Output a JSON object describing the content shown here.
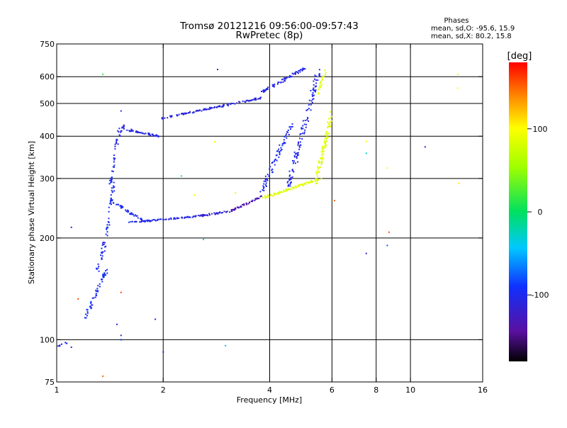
{
  "chart_data": {
    "type": "scatter",
    "title": "Tromsø 20121216 09:56:00-09:57:43",
    "subtitle": "RwPretec (8p)",
    "xlabel": "Frequency [MHz]",
    "ylabel": "Stationary phase Virtual Height [km]",
    "x_scale": "log",
    "y_scale": "log",
    "xlim": [
      1,
      16
    ],
    "ylim": [
      75,
      750
    ],
    "x_ticks": [
      1,
      2,
      4,
      6,
      8,
      10,
      16
    ],
    "x_tick_labels": [
      "1",
      "2",
      "4",
      "6",
      "8",
      "10",
      "16"
    ],
    "y_ticks": [
      75,
      100,
      200,
      300,
      400,
      500,
      600,
      750
    ],
    "y_tick_labels": [
      "75",
      "100",
      "200",
      "300",
      "400",
      "500",
      "600",
      "750"
    ],
    "x_grid_lines": [
      2,
      4,
      6,
      8,
      10
    ],
    "y_grid_lines": [
      100,
      200,
      300,
      400,
      500,
      600
    ],
    "stats": {
      "header": "Phases",
      "line_o": "mean, sd,O: -95.6, 15.9",
      "line_x": "mean, sd,X:  80.2, 15.8"
    },
    "colorbar": {
      "label": "[deg]",
      "range": [
        -180,
        180
      ],
      "ticks": [
        100,
        0,
        -100
      ],
      "tick_labels": [
        "100",
        "0",
        "-100"
      ]
    },
    "traces": [
      {
        "x_range": [
          1.0,
          1.07
        ],
        "y_range": [
          95,
          98
        ],
        "phase": -100,
        "n": 8,
        "spread": 0.012
      },
      {
        "x_range": [
          1.2,
          1.38
        ],
        "y_range": [
          115,
          160
        ],
        "phase": -95,
        "n": 50,
        "spread": 0.03
      },
      {
        "x_range": [
          1.3,
          1.38
        ],
        "y_range": [
          160,
          200
        ],
        "phase": -100,
        "n": 25,
        "spread": 0.04
      },
      {
        "x_range": [
          1.38,
          1.45
        ],
        "y_range": [
          200,
          290
        ],
        "phase": -95,
        "n": 30,
        "spread": 0.03
      },
      {
        "x_range": [
          1.42,
          1.5
        ],
        "y_range": [
          290,
          420
        ],
        "phase": -100,
        "n": 25,
        "spread": 0.03
      },
      {
        "x_range": [
          1.45,
          1.55
        ],
        "y_range": [
          370,
          430
        ],
        "phase": -110,
        "n": 20,
        "spread": 0.02
      },
      {
        "x_range": [
          1.55,
          1.95
        ],
        "y_range": [
          420,
          400
        ],
        "phase": -105,
        "n": 45,
        "spread": 0.015
      },
      {
        "x_range": [
          1.95,
          3.8
        ],
        "y_range": [
          450,
          520
        ],
        "phase": -110,
        "n": 110,
        "spread": 0.012
      },
      {
        "x_range": [
          3.8,
          5.1
        ],
        "y_range": [
          540,
          640
        ],
        "phase": -105,
        "n": 70,
        "spread": 0.02
      },
      {
        "x_range": [
          1.42,
          1.75
        ],
        "y_range": [
          260,
          225
        ],
        "phase": -100,
        "n": 45,
        "spread": 0.02
      },
      {
        "x_range": [
          1.6,
          2.5
        ],
        "y_range": [
          222,
          232
        ],
        "phase": -105,
        "n": 70,
        "spread": 0.01
      },
      {
        "x_range": [
          2.5,
          3.1
        ],
        "y_range": [
          232,
          240
        ],
        "phase": -115,
        "n": 40,
        "spread": 0.012
      },
      {
        "x_range": [
          3.1,
          3.8
        ],
        "y_range": [
          240,
          265
        ],
        "phase": -135,
        "n": 45,
        "spread": 0.012
      },
      {
        "x_range": [
          3.8,
          5.6
        ],
        "y_range": [
          262,
          300
        ],
        "phase": 85,
        "n": 90,
        "spread": 0.015
      },
      {
        "x_range": [
          3.8,
          4.6
        ],
        "y_range": [
          275,
          430
        ],
        "phase": -100,
        "n": 70,
        "spread": 0.04
      },
      {
        "x_range": [
          4.5,
          5.5
        ],
        "y_range": [
          280,
          620
        ],
        "phase": -105,
        "n": 110,
        "spread": 0.05
      },
      {
        "x_range": [
          5.4,
          6.0
        ],
        "y_range": [
          290,
          470
        ],
        "phase": 85,
        "n": 90,
        "spread": 0.04
      },
      {
        "x_range": [
          5.5,
          5.8
        ],
        "y_range": [
          540,
          640
        ],
        "phase": 85,
        "n": 18,
        "spread": 0.03
      }
    ],
    "stray_points": [
      {
        "x": 1.35,
        "y": 610,
        "phase": 20
      },
      {
        "x": 1.52,
        "y": 475,
        "phase": -100
      },
      {
        "x": 2.85,
        "y": 630,
        "phase": -110
      },
      {
        "x": 2.8,
        "y": 385,
        "phase": 90
      },
      {
        "x": 2.25,
        "y": 305,
        "phase": 5
      },
      {
        "x": 2.45,
        "y": 268,
        "phase": 95
      },
      {
        "x": 3.2,
        "y": 272,
        "phase": 90
      },
      {
        "x": 2.6,
        "y": 198,
        "phase": -30
      },
      {
        "x": 1.1,
        "y": 215,
        "phase": -120
      },
      {
        "x": 1.15,
        "y": 132,
        "phase": 160
      },
      {
        "x": 1.52,
        "y": 138,
        "phase": 160
      },
      {
        "x": 1.48,
        "y": 111,
        "phase": -110
      },
      {
        "x": 1.52,
        "y": 103,
        "phase": -120
      },
      {
        "x": 1.52,
        "y": 100,
        "phase": -90
      },
      {
        "x": 1.1,
        "y": 95,
        "phase": -120
      },
      {
        "x": 1.9,
        "y": 115,
        "phase": -115
      },
      {
        "x": 2.0,
        "y": 92,
        "phase": -110
      },
      {
        "x": 3.0,
        "y": 96,
        "phase": -40
      },
      {
        "x": 1.35,
        "y": 78,
        "phase": 150
      },
      {
        "x": 7.5,
        "y": 386,
        "phase": 100
      },
      {
        "x": 7.5,
        "y": 356,
        "phase": -30
      },
      {
        "x": 8.6,
        "y": 322,
        "phase": 100
      },
      {
        "x": 8.7,
        "y": 208,
        "phase": 155
      },
      {
        "x": 8.6,
        "y": 190,
        "phase": -80
      },
      {
        "x": 7.5,
        "y": 180,
        "phase": -130
      },
      {
        "x": 11.0,
        "y": 372,
        "phase": -100
      },
      {
        "x": 13.6,
        "y": 610,
        "phase": 90
      },
      {
        "x": 13.6,
        "y": 555,
        "phase": 100
      },
      {
        "x": 13.7,
        "y": 290,
        "phase": 110
      },
      {
        "x": 6.1,
        "y": 258,
        "phase": 150
      }
    ]
  }
}
